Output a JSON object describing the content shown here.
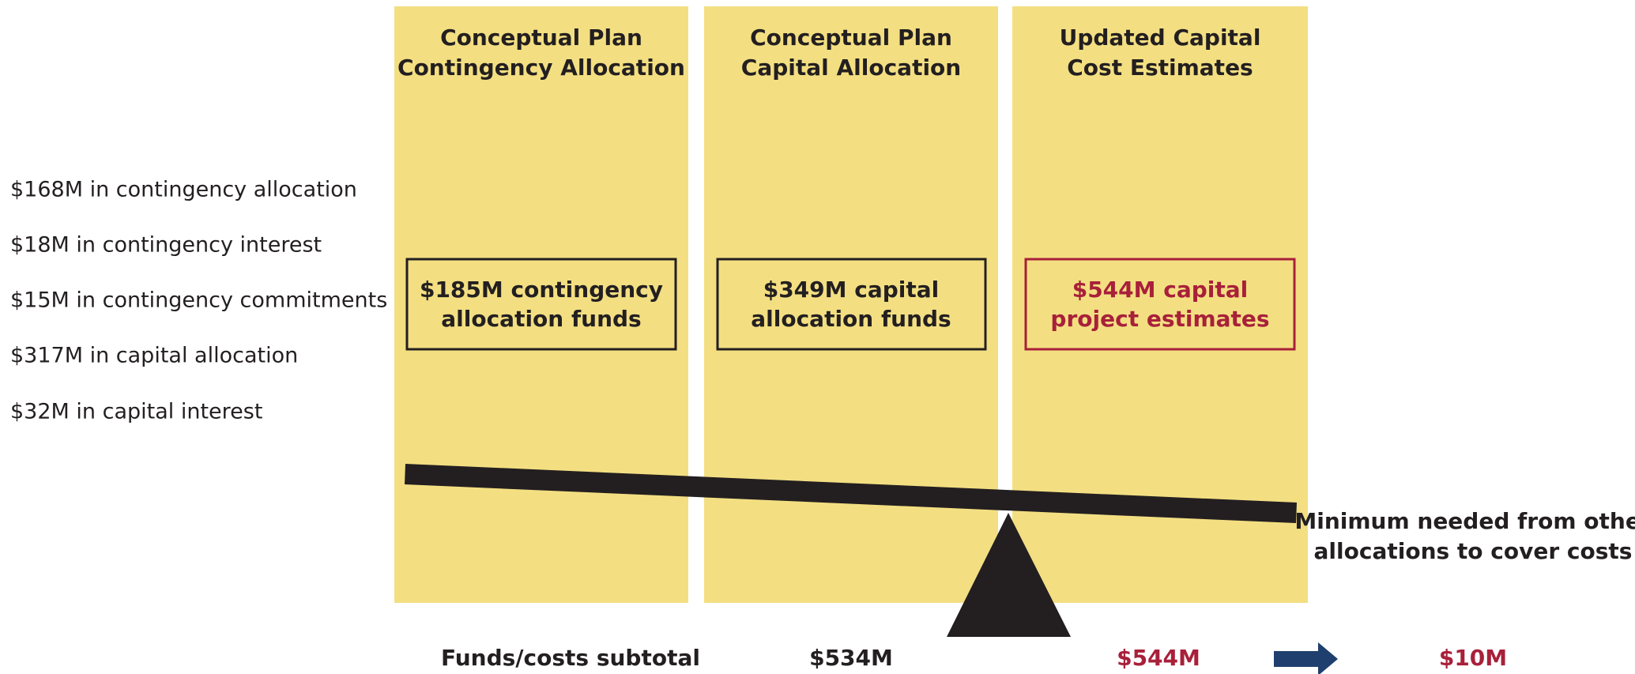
{
  "left_items": [
    "$168M in contingency allocation",
    "$18M in contingency interest",
    "$15M in contingency commitments",
    "$317M in capital allocation",
    "$32M in capital interest"
  ],
  "columns": [
    {
      "title": [
        "Conceptual Plan",
        "Contingency Allocation"
      ],
      "box": [
        "$185M contingency",
        "allocation funds"
      ]
    },
    {
      "title": [
        "Conceptual Plan",
        "Capital Allocation"
      ],
      "box": [
        "$349M capital",
        "allocation funds"
      ]
    },
    {
      "title": [
        "Updated Capital",
        "Cost Estimates"
      ],
      "box": [
        "$544M capital",
        "project estimates"
      ]
    }
  ],
  "note": [
    "Minimum needed from other",
    "allocations to cover costs"
  ],
  "subtotal": {
    "label": "Funds/costs subtotal",
    "funds": "$534M",
    "costs": "$544M",
    "gap": "$10M"
  }
}
